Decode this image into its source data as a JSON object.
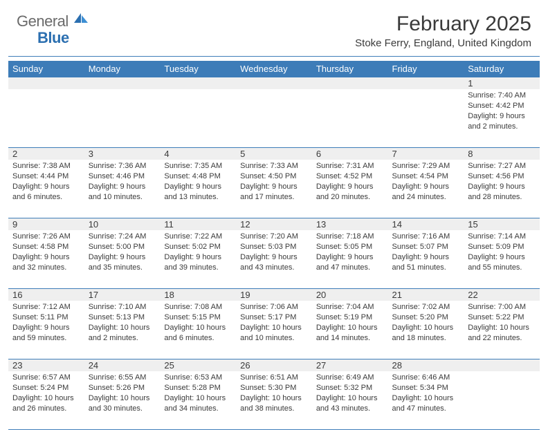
{
  "brand": {
    "part1": "General",
    "part2": "Blue"
  },
  "title": "February 2025",
  "location": "Stoke Ferry, England, United Kingdom",
  "colors": {
    "header_bar": "#3d7cb8",
    "daynum_bg": "#efefef",
    "text": "#3a3a3a",
    "brand_blue": "#2b6fb0",
    "brand_gray": "#6a6a6a"
  },
  "dayNames": [
    "Sunday",
    "Monday",
    "Tuesday",
    "Wednesday",
    "Thursday",
    "Friday",
    "Saturday"
  ],
  "weeks": [
    [
      {
        "n": "",
        "lines": []
      },
      {
        "n": "",
        "lines": []
      },
      {
        "n": "",
        "lines": []
      },
      {
        "n": "",
        "lines": []
      },
      {
        "n": "",
        "lines": []
      },
      {
        "n": "",
        "lines": []
      },
      {
        "n": "1",
        "lines": [
          "Sunrise: 7:40 AM",
          "Sunset: 4:42 PM",
          "Daylight: 9 hours and 2 minutes."
        ]
      }
    ],
    [
      {
        "n": "2",
        "lines": [
          "Sunrise: 7:38 AM",
          "Sunset: 4:44 PM",
          "Daylight: 9 hours and 6 minutes."
        ]
      },
      {
        "n": "3",
        "lines": [
          "Sunrise: 7:36 AM",
          "Sunset: 4:46 PM",
          "Daylight: 9 hours and 10 minutes."
        ]
      },
      {
        "n": "4",
        "lines": [
          "Sunrise: 7:35 AM",
          "Sunset: 4:48 PM",
          "Daylight: 9 hours and 13 minutes."
        ]
      },
      {
        "n": "5",
        "lines": [
          "Sunrise: 7:33 AM",
          "Sunset: 4:50 PM",
          "Daylight: 9 hours and 17 minutes."
        ]
      },
      {
        "n": "6",
        "lines": [
          "Sunrise: 7:31 AM",
          "Sunset: 4:52 PM",
          "Daylight: 9 hours and 20 minutes."
        ]
      },
      {
        "n": "7",
        "lines": [
          "Sunrise: 7:29 AM",
          "Sunset: 4:54 PM",
          "Daylight: 9 hours and 24 minutes."
        ]
      },
      {
        "n": "8",
        "lines": [
          "Sunrise: 7:27 AM",
          "Sunset: 4:56 PM",
          "Daylight: 9 hours and 28 minutes."
        ]
      }
    ],
    [
      {
        "n": "9",
        "lines": [
          "Sunrise: 7:26 AM",
          "Sunset: 4:58 PM",
          "Daylight: 9 hours and 32 minutes."
        ]
      },
      {
        "n": "10",
        "lines": [
          "Sunrise: 7:24 AM",
          "Sunset: 5:00 PM",
          "Daylight: 9 hours and 35 minutes."
        ]
      },
      {
        "n": "11",
        "lines": [
          "Sunrise: 7:22 AM",
          "Sunset: 5:02 PM",
          "Daylight: 9 hours and 39 minutes."
        ]
      },
      {
        "n": "12",
        "lines": [
          "Sunrise: 7:20 AM",
          "Sunset: 5:03 PM",
          "Daylight: 9 hours and 43 minutes."
        ]
      },
      {
        "n": "13",
        "lines": [
          "Sunrise: 7:18 AM",
          "Sunset: 5:05 PM",
          "Daylight: 9 hours and 47 minutes."
        ]
      },
      {
        "n": "14",
        "lines": [
          "Sunrise: 7:16 AM",
          "Sunset: 5:07 PM",
          "Daylight: 9 hours and 51 minutes."
        ]
      },
      {
        "n": "15",
        "lines": [
          "Sunrise: 7:14 AM",
          "Sunset: 5:09 PM",
          "Daylight: 9 hours and 55 minutes."
        ]
      }
    ],
    [
      {
        "n": "16",
        "lines": [
          "Sunrise: 7:12 AM",
          "Sunset: 5:11 PM",
          "Daylight: 9 hours and 59 minutes."
        ]
      },
      {
        "n": "17",
        "lines": [
          "Sunrise: 7:10 AM",
          "Sunset: 5:13 PM",
          "Daylight: 10 hours and 2 minutes."
        ]
      },
      {
        "n": "18",
        "lines": [
          "Sunrise: 7:08 AM",
          "Sunset: 5:15 PM",
          "Daylight: 10 hours and 6 minutes."
        ]
      },
      {
        "n": "19",
        "lines": [
          "Sunrise: 7:06 AM",
          "Sunset: 5:17 PM",
          "Daylight: 10 hours and 10 minutes."
        ]
      },
      {
        "n": "20",
        "lines": [
          "Sunrise: 7:04 AM",
          "Sunset: 5:19 PM",
          "Daylight: 10 hours and 14 minutes."
        ]
      },
      {
        "n": "21",
        "lines": [
          "Sunrise: 7:02 AM",
          "Sunset: 5:20 PM",
          "Daylight: 10 hours and 18 minutes."
        ]
      },
      {
        "n": "22",
        "lines": [
          "Sunrise: 7:00 AM",
          "Sunset: 5:22 PM",
          "Daylight: 10 hours and 22 minutes."
        ]
      }
    ],
    [
      {
        "n": "23",
        "lines": [
          "Sunrise: 6:57 AM",
          "Sunset: 5:24 PM",
          "Daylight: 10 hours and 26 minutes."
        ]
      },
      {
        "n": "24",
        "lines": [
          "Sunrise: 6:55 AM",
          "Sunset: 5:26 PM",
          "Daylight: 10 hours and 30 minutes."
        ]
      },
      {
        "n": "25",
        "lines": [
          "Sunrise: 6:53 AM",
          "Sunset: 5:28 PM",
          "Daylight: 10 hours and 34 minutes."
        ]
      },
      {
        "n": "26",
        "lines": [
          "Sunrise: 6:51 AM",
          "Sunset: 5:30 PM",
          "Daylight: 10 hours and 38 minutes."
        ]
      },
      {
        "n": "27",
        "lines": [
          "Sunrise: 6:49 AM",
          "Sunset: 5:32 PM",
          "Daylight: 10 hours and 43 minutes."
        ]
      },
      {
        "n": "28",
        "lines": [
          "Sunrise: 6:46 AM",
          "Sunset: 5:34 PM",
          "Daylight: 10 hours and 47 minutes."
        ]
      },
      {
        "n": "",
        "lines": []
      }
    ]
  ]
}
